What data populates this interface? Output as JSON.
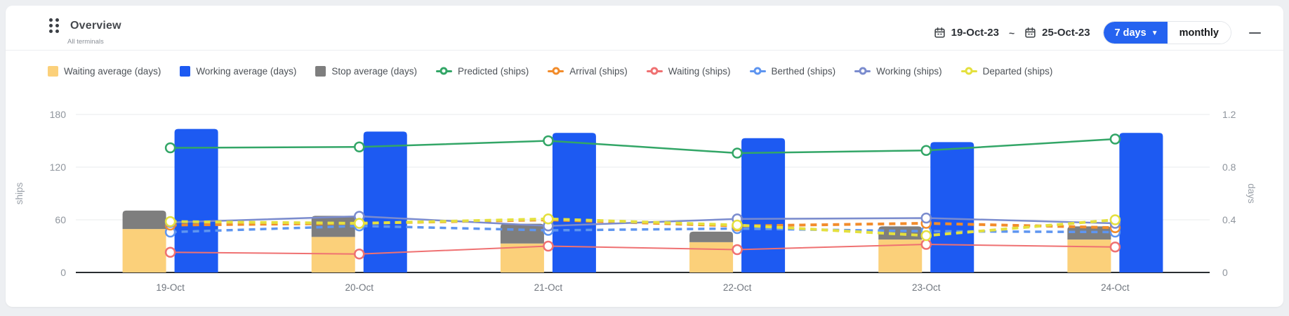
{
  "header": {
    "title": "Overview",
    "subtitle": "All terminals",
    "date_from": "19-Oct-23",
    "tilde": "~",
    "date_to": "25-Oct-23",
    "range_selected": "7 days",
    "range_monthly": "monthly"
  },
  "colors": {
    "accent_blue": "#2563f0",
    "card_bg": "#ffffff",
    "page_bg": "#edeff2",
    "grid_line": "#e9ebee",
    "axis_line": "#2a2d31",
    "tick_text": "#8f959d",
    "x_label_text": "#70767e"
  },
  "legend": [
    {
      "label": "Waiting average (days)",
      "type": "bar",
      "color": "#fbd07a"
    },
    {
      "label": "Working average (days)",
      "type": "bar",
      "color": "#1d5af2"
    },
    {
      "label": "Stop average (days)",
      "type": "bar",
      "color": "#7e7e7e"
    },
    {
      "label": "Predicted (ships)",
      "type": "line",
      "color": "#33a667"
    },
    {
      "label": "Arrival (ships)",
      "type": "line",
      "color": "#f28c2b"
    },
    {
      "label": "Waiting (ships)",
      "type": "line",
      "color": "#ef7172"
    },
    {
      "label": "Berthed (ships)",
      "type": "line",
      "color": "#5e95f0"
    },
    {
      "label": "Working (ships)",
      "type": "line",
      "color": "#7b8cce"
    },
    {
      "label": "Departed (ships)",
      "type": "line",
      "color": "#e4e03e"
    }
  ],
  "chart_data": {
    "type": "bar+line combo, dual axis",
    "categories": [
      "19-Oct",
      "20-Oct",
      "21-Oct",
      "22-Oct",
      "23-Oct",
      "24-Oct"
    ],
    "left_axis": {
      "label": "ships",
      "ticks": [
        0,
        60,
        120,
        180
      ],
      "min": 0,
      "max": 180
    },
    "right_axis": {
      "label": "days",
      "ticks": [
        0,
        0.4,
        0.8,
        1.2
      ],
      "min": 0,
      "max": 1.2
    },
    "grid": "horizontal gridlines on",
    "legend_position": "top",
    "bar_series": [
      {
        "name": "Waiting average (days)",
        "axis": "days",
        "color": "#fbd07a",
        "stack": "avg",
        "values": [
          0.33,
          0.27,
          0.22,
          0.23,
          0.25,
          0.25
        ]
      },
      {
        "name": "Stop average (days)",
        "axis": "days",
        "color": "#7e7e7e",
        "stack": "avg",
        "values": [
          0.14,
          0.16,
          0.15,
          0.08,
          0.1,
          0.1
        ]
      },
      {
        "name": "Working average (days)",
        "axis": "days",
        "color": "#1d5af2",
        "stack": null,
        "values": [
          1.09,
          1.07,
          1.06,
          1.02,
          0.99,
          1.06
        ]
      }
    ],
    "line_series": [
      {
        "name": "Waiting (ships)",
        "axis": "ships",
        "color": "#ef7172",
        "style": "solid",
        "width": 2,
        "values": [
          23,
          21,
          30,
          26,
          32,
          29
        ]
      },
      {
        "name": "Berthed (ships)",
        "axis": "ships",
        "color": "#5e95f0",
        "style": "dashed",
        "width": 3.5,
        "values": [
          46,
          53,
          48,
          50,
          47,
          46
        ]
      },
      {
        "name": "Arrival (ships)",
        "axis": "ships",
        "color": "#f28c2b",
        "style": "dashed",
        "width": 4,
        "values": [
          54,
          56,
          60,
          53,
          56,
          51
        ]
      },
      {
        "name": "Working (ships)",
        "axis": "ships",
        "color": "#7b8cce",
        "style": "solid",
        "width": 2.5,
        "values": [
          57,
          64,
          53,
          61,
          62,
          56
        ]
      },
      {
        "name": "Departed (ships)",
        "axis": "ships",
        "color": "#e4e03e",
        "style": "dashed",
        "width": 4,
        "values": [
          58,
          56,
          61,
          54,
          42,
          60
        ]
      },
      {
        "name": "Predicted (ships)",
        "axis": "ships",
        "color": "#33a667",
        "style": "solid",
        "width": 2.5,
        "values": [
          142,
          143,
          150,
          136,
          139,
          152
        ]
      }
    ]
  }
}
